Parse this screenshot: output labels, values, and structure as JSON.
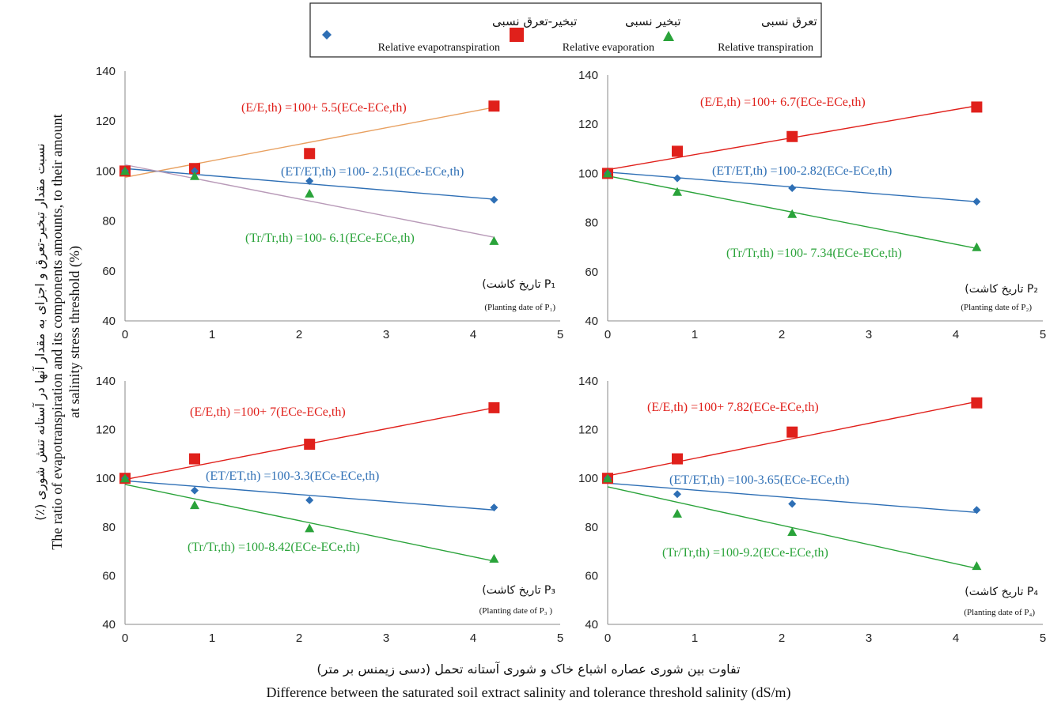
{
  "legend": [
    {
      "fa": "تبخیر-تعرق نسبی",
      "en": "Relative evapotranspiration",
      "color": "#2e6fb5",
      "marker": "diamond"
    },
    {
      "fa": "تبخیر نسبی",
      "en": "Relative evaporation",
      "color": "#e0201b",
      "marker": "square"
    },
    {
      "fa": "تعرق نسبی",
      "en": "Relative transpiration",
      "color": "#2aa33a",
      "marker": "triangle"
    }
  ],
  "ylabel_fa": "نسبت مقدار تبخیر-تعرق و اجزای به مقدار آنها در آستانه تنش شوری (٪)",
  "ylabel_en_1": "The ratio of evapotranspiration and its components amounts, to their amount",
  "ylabel_en_2": "at salinity stress threshold (%)",
  "xlabel_fa": "تفاوت بین شوری عصاره اشباع خاک و شوری آستانه تحمل (دسی زیمنس بر متر)",
  "xlabel_en": "Difference between the saturated soil extract salinity and tolerance threshold salinity (dS/m)",
  "colors": {
    "et": "#2e6fb5",
    "e": "#e0201b",
    "tr": "#2aa33a",
    "e_line_p1": "#e8a060",
    "tr_line_p1": "#b89ab8"
  },
  "chart_data": [
    {
      "type": "scatter",
      "planting_label_fa": "(تاریخ کاشت P₁",
      "planting_label_en": "(Planting date of P₁)",
      "xlim": [
        0,
        5
      ],
      "ylim": [
        40,
        140
      ],
      "xticks": [
        0,
        1,
        2,
        3,
        4,
        5
      ],
      "yticks": [
        40,
        60,
        80,
        100,
        120,
        140
      ],
      "x": [
        0,
        0.8,
        2.12,
        4.24
      ],
      "series": [
        {
          "key": "e",
          "values": [
            100,
            101,
            107,
            126
          ],
          "equation": "(E/E,th) =100+ 5.5(ECe-ECe,th)",
          "fit": [
            97.5,
            125.5
          ]
        },
        {
          "key": "et",
          "values": [
            100,
            100,
            96,
            88.5
          ],
          "equation": "(ET/ET,th) =100- 2.51(ECe-ECe,th)",
          "fit": [
            101,
            88.7
          ]
        },
        {
          "key": "tr",
          "values": [
            100,
            98,
            91,
            72
          ],
          "equation": "(Tr/Tr,th) =100- 6.1(ECe-ECe,th)",
          "fit": [
            102.5,
            73.5
          ]
        }
      ]
    },
    {
      "type": "scatter",
      "planting_label_fa": "(تاریخ کاشت P₂",
      "planting_label_en": "(Planting date of P₂)",
      "xlim": [
        0,
        5
      ],
      "ylim": [
        40,
        140
      ],
      "xticks": [
        0,
        1,
        2,
        3,
        4,
        5
      ],
      "yticks": [
        40,
        60,
        80,
        100,
        120,
        140
      ],
      "x": [
        0,
        0.8,
        2.12,
        4.24
      ],
      "series": [
        {
          "key": "e",
          "values": [
            100,
            109,
            115,
            127
          ],
          "equation": "(E/E,th) =100+ 6.7(ECe-ECe,th)",
          "fit": [
            101.5,
            127.5
          ]
        },
        {
          "key": "et",
          "values": [
            100,
            98,
            94,
            88.5
          ],
          "equation": "(ET/ET,th) =100-2.82(ECe-ECe,th)",
          "fit": [
            100.5,
            88.5
          ]
        },
        {
          "key": "tr",
          "values": [
            100,
            92.5,
            83.5,
            70
          ],
          "equation": "(Tr/Tr,th) =100- 7.34(ECe-ECe,th)",
          "fit": [
            99,
            69.5
          ]
        }
      ]
    },
    {
      "type": "scatter",
      "planting_label_fa": "(تاریخ کاشت P₃",
      "planting_label_en": "(Planting date of P₃ )",
      "xlim": [
        0,
        5
      ],
      "ylim": [
        40,
        140
      ],
      "xticks": [
        0,
        1,
        2,
        3,
        4,
        5
      ],
      "yticks": [
        40,
        60,
        80,
        100,
        120,
        140
      ],
      "x": [
        0,
        0.8,
        2.12,
        4.24
      ],
      "series": [
        {
          "key": "e",
          "values": [
            100,
            108,
            114,
            129
          ],
          "equation": "(E/E,th) =100+ 7(ECe-ECe,th)",
          "fit": [
            99.5,
            129
          ]
        },
        {
          "key": "et",
          "values": [
            100,
            95,
            91,
            88
          ],
          "equation": "(ET/ET,th) =100-3.3(ECe-ECe,th)",
          "fit": [
            99,
            87
          ]
        },
        {
          "key": "tr",
          "values": [
            100,
            89,
            79.5,
            67
          ],
          "equation": "(Tr/Tr,th) =100-8.42(ECe-ECe,th)",
          "fit": [
            97.5,
            66
          ]
        }
      ]
    },
    {
      "type": "scatter",
      "planting_label_fa": "(تاریخ کاشت P₄",
      "planting_label_en": "(Planting date of P₄)",
      "xlim": [
        0,
        5
      ],
      "ylim": [
        40,
        140
      ],
      "xticks": [
        0,
        1,
        2,
        3,
        4,
        5
      ],
      "yticks": [
        40,
        60,
        80,
        100,
        120,
        140
      ],
      "x": [
        0,
        0.8,
        2.12,
        4.24
      ],
      "series": [
        {
          "key": "e",
          "values": [
            100,
            108,
            119,
            131
          ],
          "equation": "(E/E,th) =100+ 7.82(ECe-ECe,th)",
          "fit": [
            101,
            131.5
          ]
        },
        {
          "key": "et",
          "values": [
            100,
            93.5,
            89.5,
            87
          ],
          "equation": "(ET/ET,th) =100-3.65(ECe-ECe,th)",
          "fit": [
            98,
            86
          ]
        },
        {
          "key": "tr",
          "values": [
            100,
            85.5,
            78,
            64
          ],
          "equation": "(Tr/Tr,th) =100-9.2(ECe-ECe,th)",
          "fit": [
            96.5,
            63
          ]
        }
      ]
    }
  ]
}
